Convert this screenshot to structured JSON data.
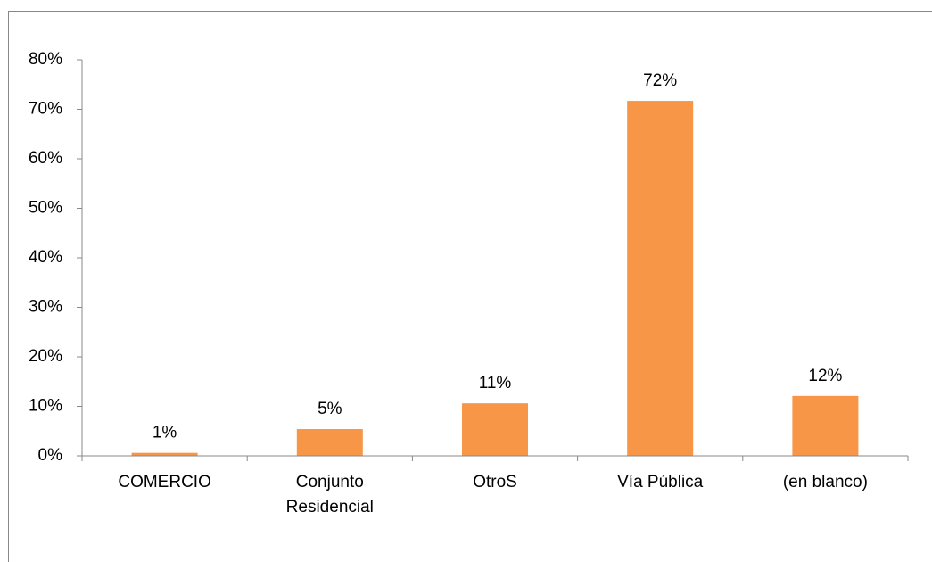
{
  "chart_data": {
    "type": "bar",
    "categories": [
      "COMERCIO",
      "Conjunto Residencial",
      "OtroS",
      "Vía Pública",
      "(en blanco)"
    ],
    "values": [
      0.6,
      5.4,
      10.6,
      71.7,
      12.1
    ],
    "value_labels": [
      "1%",
      "5%",
      "11%",
      "72%",
      "12%"
    ],
    "color": "#f79646",
    "ylim": [
      0,
      80
    ],
    "yticks": [
      {
        "value": 0,
        "label": "0%"
      },
      {
        "value": 10,
        "label": "10%"
      },
      {
        "value": 20,
        "label": "20%"
      },
      {
        "value": 30,
        "label": "30%"
      },
      {
        "value": 40,
        "label": "40%"
      },
      {
        "value": 50,
        "label": "50%"
      },
      {
        "value": 60,
        "label": "60%"
      },
      {
        "value": 70,
        "label": "70%"
      },
      {
        "value": 80,
        "label": "80%"
      }
    ],
    "grid": false
  }
}
